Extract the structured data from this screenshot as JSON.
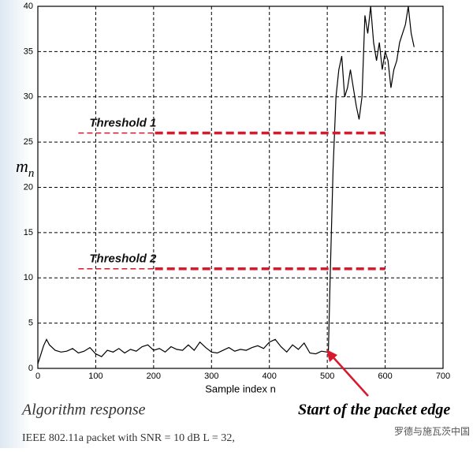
{
  "chart_data": {
    "type": "line",
    "ylabel": {
      "main": "m",
      "sub": "n"
    },
    "xlabel": "Sample index n",
    "caption": "Algorithm response",
    "arrow_label": "Start of the packet edge",
    "footnote": "IEEE 802.11a packet with SNR = 10 dB L = 32,",
    "watermark": "罗德与施瓦茨中国",
    "xlim": [
      0,
      700
    ],
    "ylim": [
      0,
      40
    ],
    "xticks": [
      0,
      100,
      200,
      300,
      400,
      500,
      600,
      700
    ],
    "yticks": [
      0,
      5,
      10,
      15,
      20,
      25,
      30,
      35,
      40
    ],
    "grid": true,
    "color": "#000000",
    "x": [
      0,
      10,
      15,
      20,
      30,
      40,
      50,
      60,
      70,
      80,
      90,
      100,
      110,
      120,
      130,
      140,
      150,
      160,
      170,
      180,
      190,
      200,
      210,
      220,
      230,
      240,
      250,
      260,
      270,
      280,
      290,
      300,
      310,
      320,
      330,
      340,
      350,
      360,
      370,
      380,
      390,
      400,
      410,
      420,
      430,
      440,
      450,
      460,
      470,
      480,
      490,
      500,
      502,
      505,
      510,
      515,
      520,
      525,
      530,
      535,
      540,
      545,
      550,
      555,
      560,
      565,
      570,
      575,
      580,
      585,
      590,
      595,
      600,
      605,
      610,
      615,
      620,
      625,
      630,
      635,
      640,
      645,
      650
    ],
    "values": [
      0.5,
      2.5,
      3.2,
      2.6,
      2.0,
      1.8,
      1.9,
      2.2,
      1.7,
      1.9,
      2.3,
      1.6,
      1.3,
      2.0,
      1.8,
      2.2,
      1.7,
      2.1,
      1.9,
      2.4,
      2.6,
      2.0,
      2.2,
      1.8,
      2.4,
      2.1,
      2.0,
      2.6,
      2.0,
      2.9,
      2.3,
      1.8,
      1.7,
      2.0,
      2.3,
      1.9,
      2.1,
      2.0,
      2.3,
      2.5,
      2.2,
      2.9,
      3.2,
      2.4,
      1.8,
      2.6,
      2.1,
      2.8,
      1.7,
      1.6,
      1.9,
      1.8,
      2.0,
      10,
      22,
      30,
      33,
      34.5,
      30,
      31,
      33,
      31,
      29,
      27.5,
      30,
      39,
      37,
      40,
      36,
      34,
      36,
      33,
      35,
      34,
      31,
      33,
      34,
      36,
      37,
      38,
      40,
      37,
      35.5
    ],
    "thresholds": [
      {
        "label": "Threshold 1",
        "value": 26,
        "from": 70,
        "to": 600,
        "color": "#d9182d"
      },
      {
        "label": "Threshold 2",
        "value": 11,
        "from": 70,
        "to": 600,
        "color": "#d9182d"
      }
    ]
  }
}
